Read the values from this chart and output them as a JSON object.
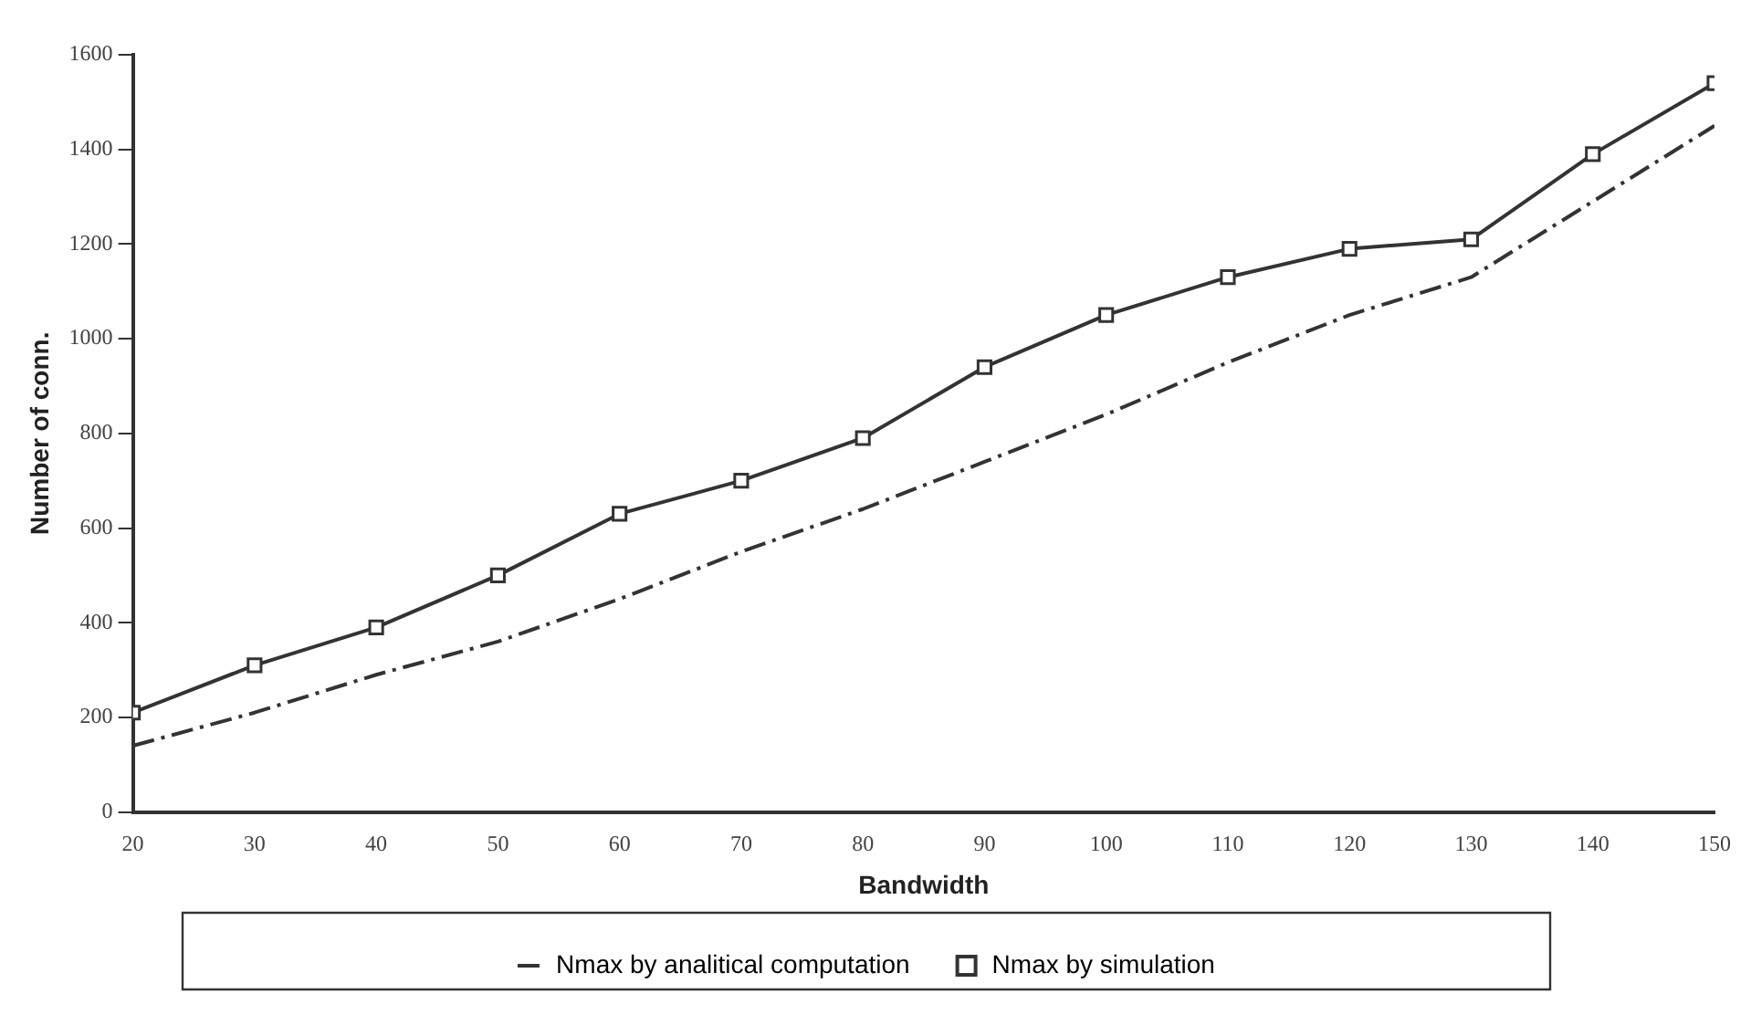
{
  "chart_data": {
    "type": "line",
    "xlabel": "Bandwidth",
    "ylabel": "Number of conn.",
    "x": [
      20,
      30,
      40,
      50,
      60,
      70,
      80,
      90,
      100,
      110,
      120,
      130,
      140,
      150
    ],
    "series": [
      {
        "name": "Nmax by analitical computation",
        "color": "#333333",
        "line_style": "dashed",
        "marker": "none",
        "values": [
          140,
          210,
          290,
          360,
          450,
          550,
          640,
          740,
          840,
          950,
          1050,
          1130,
          1290,
          1450
        ]
      },
      {
        "name": "Nmax by simulation",
        "color": "#333333",
        "line_style": "solid",
        "marker": "square",
        "values": [
          210,
          310,
          390,
          500,
          630,
          700,
          790,
          940,
          1050,
          1130,
          1190,
          1210,
          1390,
          1540
        ]
      }
    ],
    "xlim": [
      20,
      150
    ],
    "xticks": [
      20,
      30,
      40,
      50,
      60,
      70,
      80,
      90,
      100,
      110,
      120,
      130,
      140,
      150
    ],
    "ylim": [
      0,
      1600
    ],
    "yticks": [
      0,
      200,
      400,
      600,
      800,
      1000,
      1200,
      1400,
      1600
    ],
    "grid": false,
    "legend": "bottom"
  }
}
